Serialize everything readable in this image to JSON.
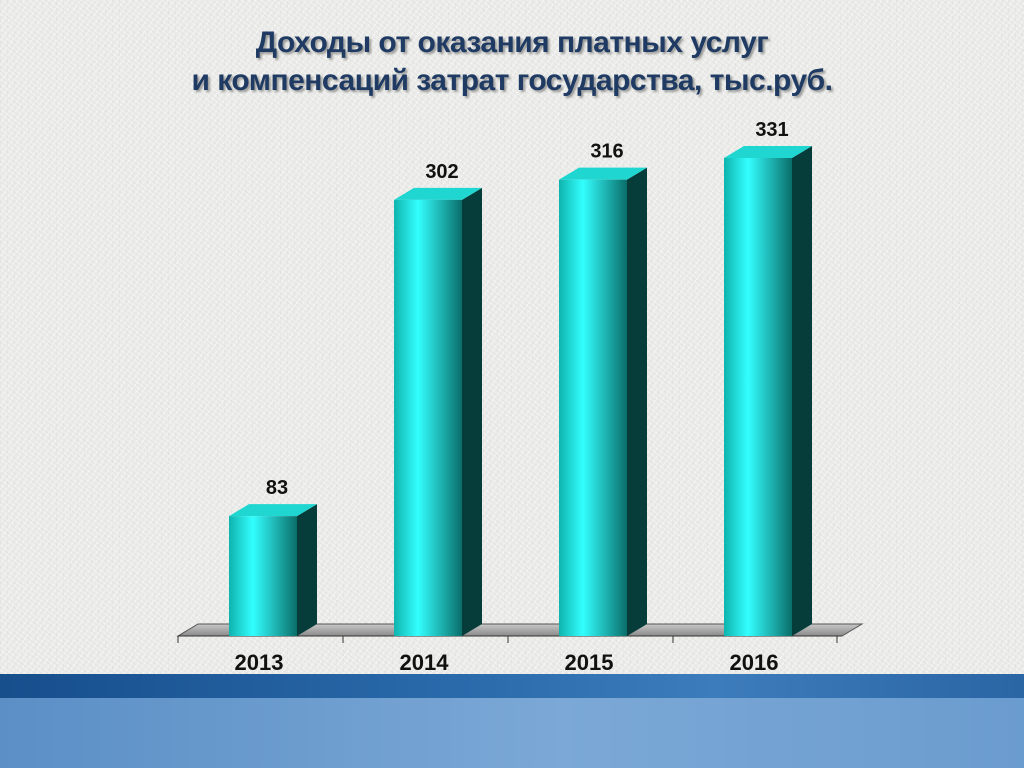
{
  "chart_data": {
    "type": "bar",
    "title_line1": "Доходы от оказания платных услуг",
    "title_line2": "и компенсаций затрат государства, тыс.руб.",
    "categories": [
      "2013",
      "2014",
      "2015",
      "2016"
    ],
    "values": [
      83,
      302,
      316,
      331
    ],
    "xlabel": "",
    "ylabel": "",
    "ylim": [
      0,
      331
    ],
    "grid": false,
    "legend": "none",
    "colors": {
      "bar_light": "#33ffff",
      "bar_mid": "#0fb3ad",
      "bar_dark": "#0a6e6a",
      "bar_side": "#063c3a",
      "bar_top": "#1fd6d0",
      "title": "#1f3b63"
    }
  }
}
